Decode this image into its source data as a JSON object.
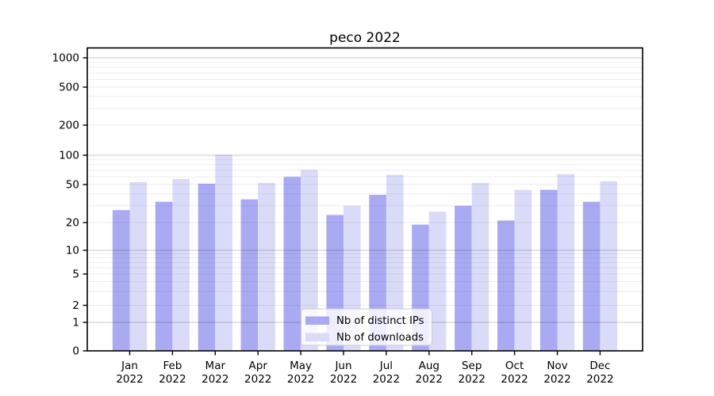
{
  "chart_data": {
    "type": "bar",
    "title": "peco 2022",
    "categories": [
      "Jan 2022",
      "Feb 2022",
      "Mar 2022",
      "Apr 2022",
      "May 2022",
      "Jun 2022",
      "Jul 2022",
      "Aug 2022",
      "Sep 2022",
      "Oct 2022",
      "Nov 2022",
      "Dec 2022"
    ],
    "series": [
      {
        "name": "Nb of distinct IPs",
        "color": "#a9aaf2",
        "values": [
          27,
          33,
          51,
          35,
          60,
          24,
          39,
          19,
          30,
          21,
          44,
          33
        ]
      },
      {
        "name": "Nb of downloads",
        "color": "#dadbf8",
        "values": [
          53,
          57,
          101,
          52,
          71,
          30,
          63,
          26,
          52,
          44,
          64,
          54
        ]
      }
    ],
    "xlabel": "",
    "ylabel": "",
    "y_scale": "log-like (1-2-5 ticks with 0 baseline)",
    "y_ticks": [
      0,
      1,
      2,
      5,
      10,
      20,
      50,
      100,
      200,
      500,
      1000
    ],
    "ylim": [
      0,
      1000
    ],
    "grid": true,
    "legend_position": "lower center"
  },
  "colors": {
    "background": "#ffffff",
    "axis": "#000000",
    "grid_major": "rgba(0,0,0,0.215)",
    "grid_minor": "rgba(0,0,0,0.07)",
    "legend_border": "#cccccc",
    "legend_background": "rgba(255,255,255,0.8)"
  }
}
